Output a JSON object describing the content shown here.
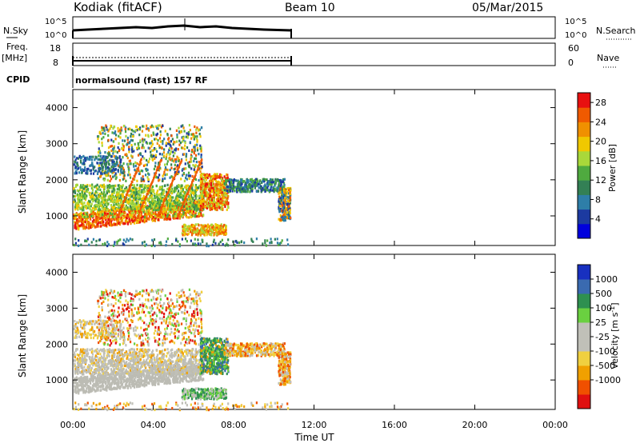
{
  "header": {
    "station": "Kodiak (fitACF)",
    "beam": "Beam 10",
    "date": "05/Mar/2015"
  },
  "summary_panels": {
    "left_labels": {
      "nsky": "N.Sky",
      "freq_top": "Freq.",
      "freq_unit": "[MHz]",
      "cpid": "CPID"
    },
    "right_labels": {
      "nsearch": "N.Search",
      "nave": "Nave"
    },
    "noise_ticks_left": [
      "10^5",
      "10^0"
    ],
    "noise_ticks_right": [
      "10^5",
      "10^0"
    ],
    "freq_ticks": [
      "18",
      "8"
    ],
    "nave_ticks": [
      "60",
      "0"
    ],
    "cpid_text": "normalsound (fast) 157 RF"
  },
  "axes": {
    "x_ticks": [
      "00:00",
      "04:00",
      "08:00",
      "12:00",
      "16:00",
      "20:00",
      "00:00"
    ],
    "x_label": "Time UT",
    "y_ticks": [
      "1000",
      "2000",
      "3000",
      "4000"
    ],
    "y_label": "Slant Range [km]"
  },
  "colors": {
    "power": [
      "#0000dd",
      "#1c3aa0",
      "#2e7ea8",
      "#338055",
      "#4faa3f",
      "#a9d83a",
      "#f0c800",
      "#f09000",
      "#f05a00",
      "#e81010"
    ],
    "velocity": [
      "#e01010",
      "#f05000",
      "#f0a000",
      "#f0d040",
      "#c0c0b8",
      "#c0c0b8",
      "#6ad040",
      "#2e9050",
      "#3a6ab0",
      "#1830c0"
    ],
    "ground": "#bcbcb4"
  },
  "chart_data": [
    {
      "type": "heatmap",
      "title": "Power",
      "ylabel": "Slant Range [km]",
      "xlabel": "Time UT",
      "x_range_hours": [
        0,
        24
      ],
      "y_range_km": [
        180,
        4500
      ],
      "colorbar": {
        "label": "Power [dB]",
        "ticks": [
          "4",
          "8",
          "12",
          "16",
          "20",
          "24",
          "28"
        ],
        "range": [
          0,
          30
        ]
      },
      "data_extent_hours": [
        0,
        10.8
      ]
    },
    {
      "type": "heatmap",
      "title": "Velocity",
      "ylabel": "Slant Range [km]",
      "xlabel": "Time UT",
      "x_range_hours": [
        0,
        24
      ],
      "y_range_km": [
        180,
        4500
      ],
      "colorbar": {
        "label": "Velocity [m s^-1]",
        "ticks": [
          "1000",
          "500",
          "100",
          "25",
          "-25",
          "-100",
          "-500",
          "-1000"
        ]
      },
      "data_extent_hours": [
        0,
        10.8
      ]
    }
  ]
}
